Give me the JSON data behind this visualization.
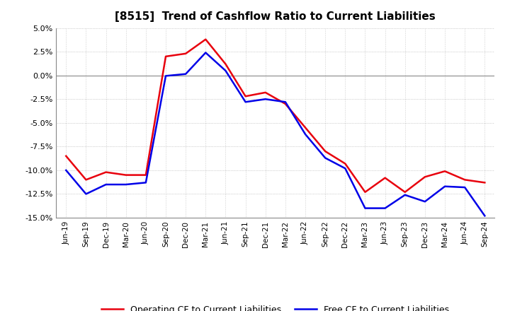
{
  "title": "[8515]  Trend of Cashflow Ratio to Current Liabilities",
  "x_labels": [
    "Jun-19",
    "Sep-19",
    "Dec-19",
    "Mar-20",
    "Jun-20",
    "Sep-20",
    "Dec-20",
    "Mar-21",
    "Jun-21",
    "Sep-21",
    "Dec-21",
    "Mar-22",
    "Jun-22",
    "Sep-22",
    "Dec-22",
    "Mar-23",
    "Jun-23",
    "Sep-23",
    "Dec-23",
    "Mar-24",
    "Jun-24",
    "Sep-24"
  ],
  "operating_cf": [
    -8.5,
    -11.0,
    -10.2,
    -10.5,
    -10.5,
    2.0,
    2.3,
    3.8,
    1.2,
    -2.2,
    -1.8,
    -3.0,
    -5.5,
    -8.0,
    -9.3,
    -12.3,
    -10.8,
    -12.3,
    -10.7,
    -10.1,
    -11.0,
    -11.3
  ],
  "free_cf": [
    -10.0,
    -12.5,
    -11.5,
    -11.5,
    -11.3,
    -0.05,
    0.15,
    2.4,
    0.5,
    -2.8,
    -2.5,
    -2.8,
    -6.2,
    -8.7,
    -9.8,
    -14.0,
    -14.0,
    -12.6,
    -13.3,
    -11.7,
    -11.8,
    -14.8
  ],
  "operating_color": "#e8000d",
  "free_color": "#0000e8",
  "ylim": [
    -15.0,
    5.0
  ],
  "yticks": [
    5.0,
    2.5,
    0.0,
    -2.5,
    -5.0,
    -7.5,
    -10.0,
    -12.5,
    -15.0
  ],
  "legend_operating": "Operating CF to Current Liabilities",
  "legend_free": "Free CF to Current Liabilities",
  "background_color": "#ffffff",
  "grid_color": "#aaaaaa",
  "grid_color_zero": "#888888"
}
